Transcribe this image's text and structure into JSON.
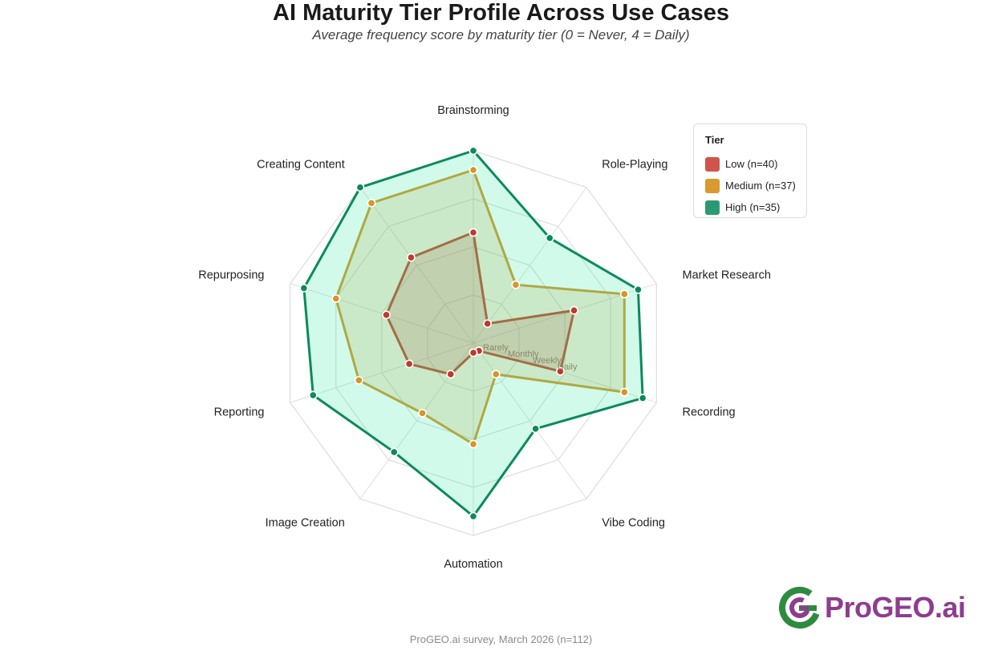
{
  "header": {
    "title": "AI Maturity Tier Profile Across Use Cases",
    "subtitle": "Average frequency score by maturity tier (0 = Never, 4 = Daily)"
  },
  "chart_data": {
    "type": "radar",
    "title": "AI Maturity Tier Profile Across Use Cases",
    "subtitle": "Average frequency score by maturity tier (0 = Never, 4 = Daily)",
    "categories": [
      "Brainstorming",
      "Role-Playing",
      "Market Research",
      "Recording",
      "Vibe Coding",
      "Automation",
      "Image Creation",
      "Reporting",
      "Repurposing",
      "Creating Content"
    ],
    "rlim": [
      0,
      4
    ],
    "ring_ticks": [
      1,
      2,
      3,
      4
    ],
    "ring_labels": [
      "Rarely",
      "Monthly",
      "Weekly",
      "Daily"
    ],
    "grid": true,
    "legend_position": "top-right",
    "legend_title": "Tier",
    "series": [
      {
        "name": "Low (n=40)",
        "color": "#c0392b",
        "values": [
          2.3,
          0.5,
          2.2,
          1.9,
          0.2,
          0.2,
          0.8,
          1.4,
          1.9,
          2.2
        ]
      },
      {
        "name": "Medium (n=37)",
        "color": "#d4962a",
        "values": [
          3.6,
          1.5,
          3.3,
          3.3,
          0.8,
          2.1,
          1.8,
          2.5,
          3.0,
          3.6
        ]
      },
      {
        "name": "High (n=35)",
        "color": "#0b8a5c",
        "values": [
          4.0,
          2.7,
          3.6,
          3.7,
          2.2,
          3.6,
          2.8,
          3.5,
          3.7,
          4.0
        ]
      }
    ],
    "fill_colors": [
      "#c0392b",
      "#d4962a",
      "#2ee89e"
    ],
    "legend_swatch_colors": [
      "#cf564b",
      "#d99a32",
      "#2b9a72"
    ]
  },
  "footer": {
    "source": "ProGEO.ai survey, March 2026 (n=112)"
  },
  "logo": {
    "text": "ProGEO.ai",
    "primary_color": "#8e3d8e",
    "mark_color": "#2e8b3e"
  }
}
